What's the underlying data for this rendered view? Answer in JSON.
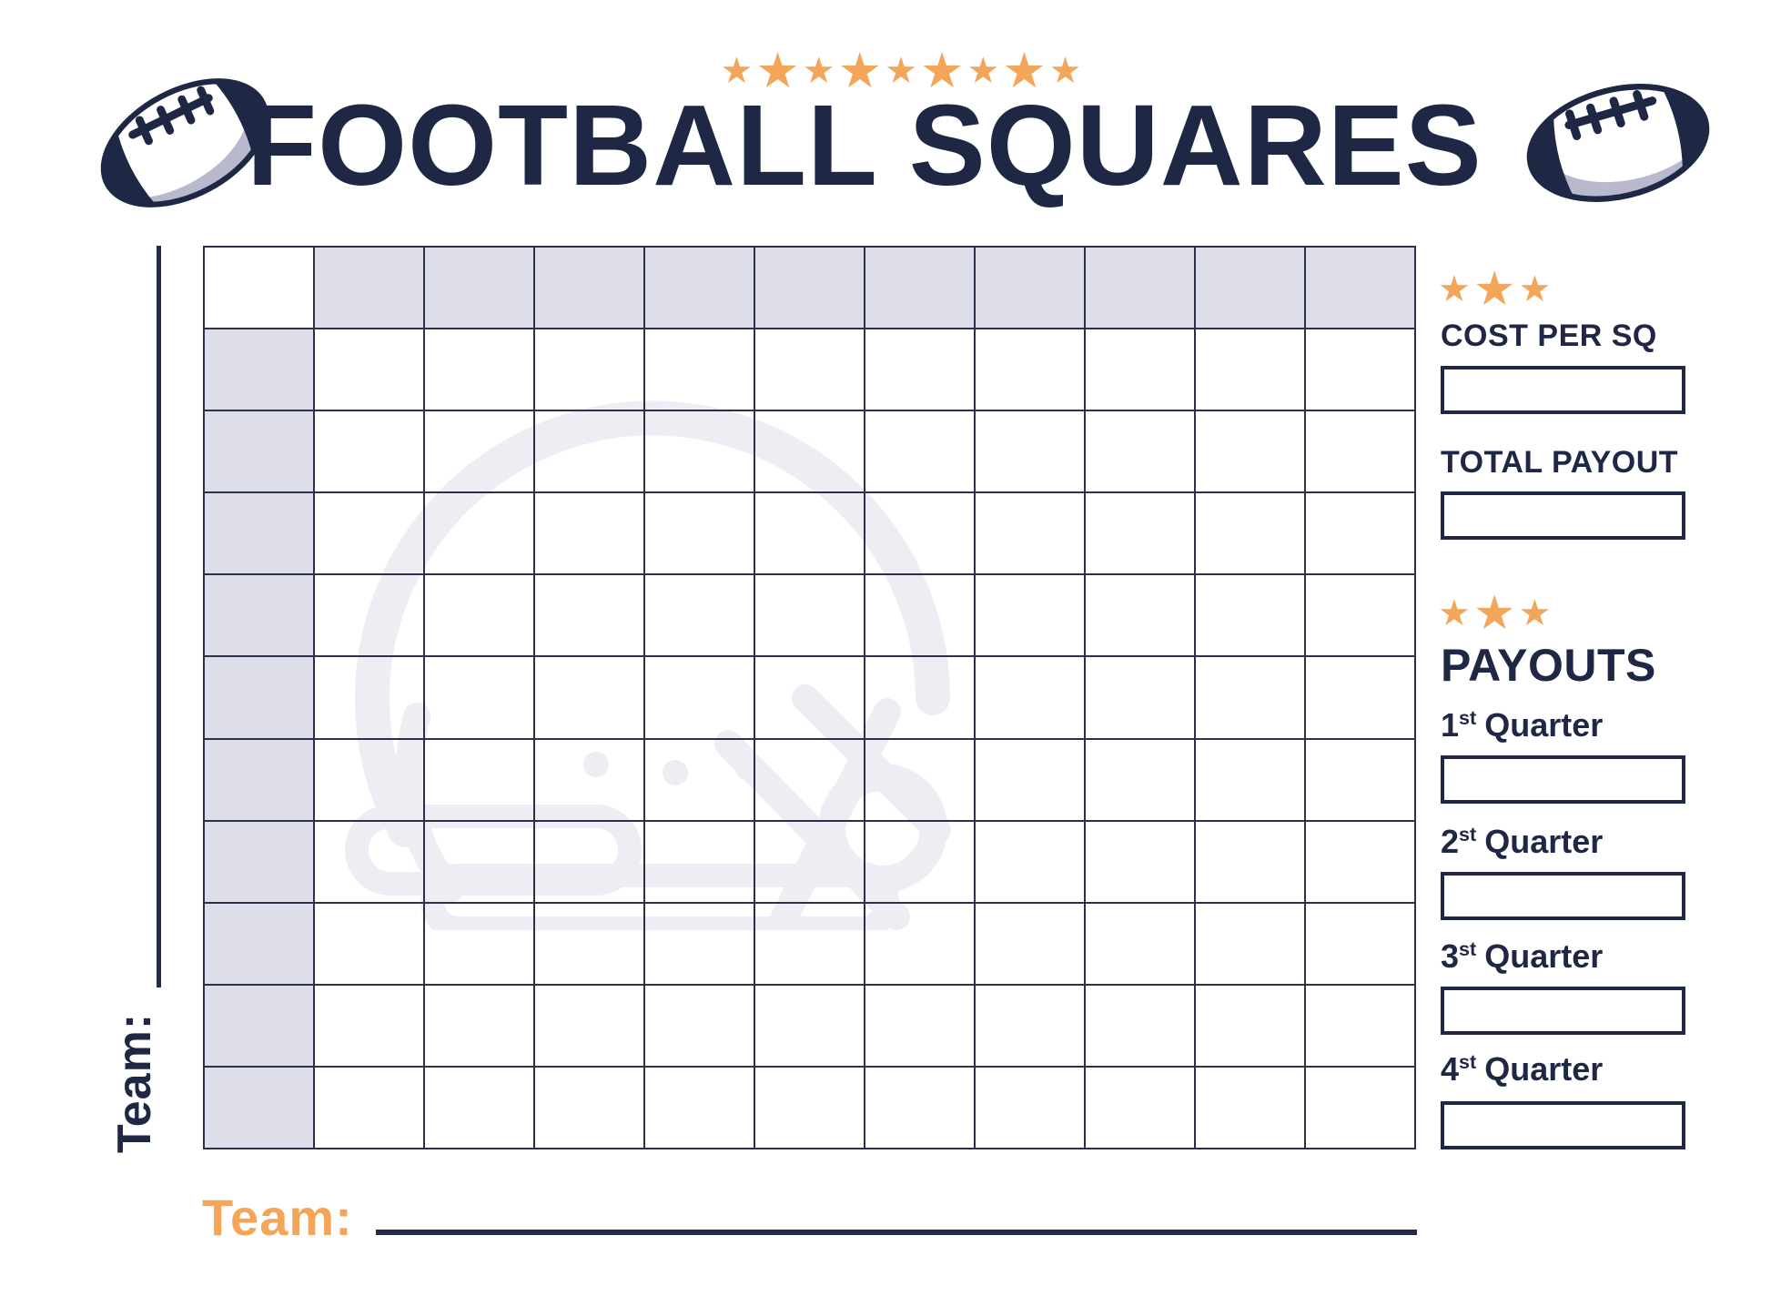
{
  "header": {
    "stars_count": 9,
    "title": "FOOTBALL SQUARES"
  },
  "board": {
    "rows": 11,
    "cols": 11,
    "shaded_first_row": true,
    "shaded_first_col": true
  },
  "sidebar": {
    "cost": {
      "stars_count": 3,
      "label": "COST PER SQ"
    },
    "total": {
      "label": "TOTAL PAYOUT"
    },
    "payouts": {
      "stars_count": 3,
      "title": "PAYOUTS",
      "quarters": [
        {
          "num": "1",
          "sup": "st",
          "word": "Quarter"
        },
        {
          "num": "2",
          "sup": "st",
          "word": "Quarter"
        },
        {
          "num": "3",
          "sup": "st",
          "word": "Quarter"
        },
        {
          "num": "4",
          "sup": "st",
          "word": "Quarter"
        }
      ]
    }
  },
  "left_axis": {
    "team_label": "Team:"
  },
  "bottom_axis": {
    "team_label": "Team:"
  },
  "colors": {
    "navy": "#1E2845",
    "grid_line": "#2B3149",
    "orange": "#F3A65A",
    "shaded_cell": "#DEDEE8",
    "watermark": "#EDEDF3",
    "football_shadow": "#B9B9CE"
  }
}
